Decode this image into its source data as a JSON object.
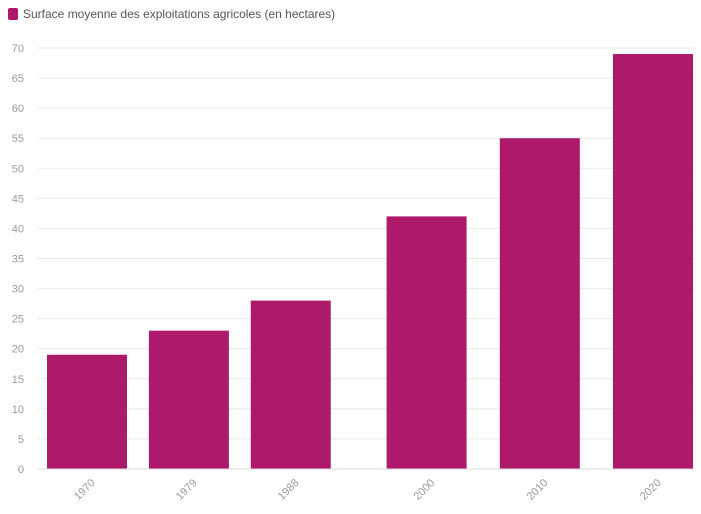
{
  "chart_data": {
    "type": "bar",
    "categories": [
      "1970",
      "1979",
      "1988",
      "2000",
      "2010",
      "2020"
    ],
    "x": [
      1970,
      1979,
      1988,
      2000,
      2010,
      2020
    ],
    "series": [
      {
        "name": "Surface moyenne des exploitations agricoles (en hectares)",
        "values": [
          19,
          23,
          28,
          42,
          55,
          69
        ],
        "color": "#ad1a6b"
      }
    ],
    "title": "",
    "xlabel": "",
    "ylabel": "",
    "ylim": [
      0,
      70
    ],
    "yticks": [
      0,
      5,
      10,
      15,
      20,
      25,
      30,
      35,
      40,
      45,
      50,
      55,
      60,
      65,
      70
    ],
    "grid": true,
    "legend": "top-left",
    "x_tick_rotation": "rotated"
  }
}
